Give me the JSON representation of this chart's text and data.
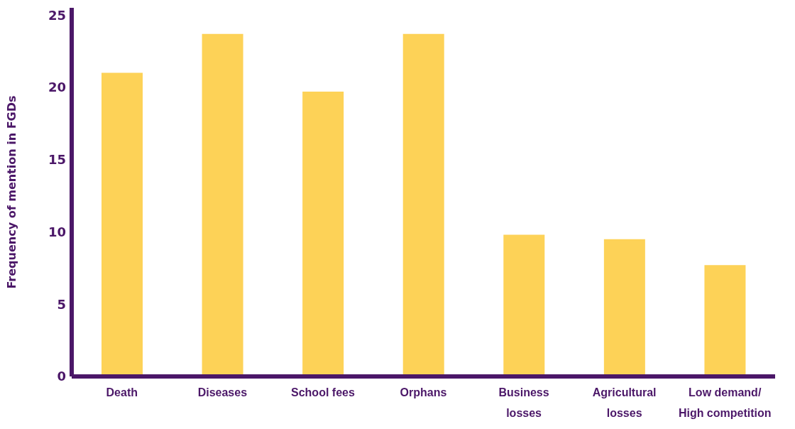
{
  "chart_data": {
    "type": "bar",
    "ylabel": "Frequency of mention in FGDs",
    "categories": [
      "Death",
      "Diseases",
      "School fees",
      "Orphans",
      "Business losses",
      "Agricultural losses",
      "Low demand/ High competition"
    ],
    "values": [
      21,
      23.7,
      19.7,
      23.7,
      9.8,
      9.5,
      7.7
    ],
    "color": "#fdd257",
    "ylim": [
      0,
      25.5
    ],
    "yticks": [
      0,
      5,
      10,
      15,
      20,
      25
    ],
    "grid": false,
    "legend": false
  }
}
